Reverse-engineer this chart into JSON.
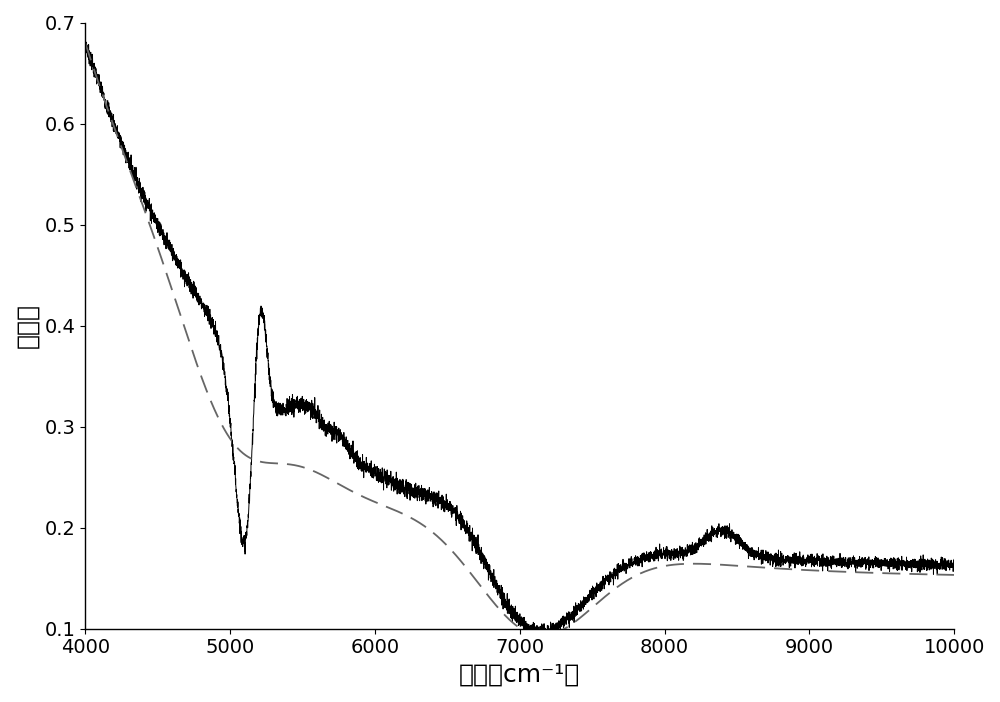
{
  "xlim": [
    4000,
    10000
  ],
  "ylim": [
    0.1,
    0.7
  ],
  "xlabel": "波长（cm⁻¹）",
  "ylabel": "吸光度",
  "xticks": [
    4000,
    5000,
    6000,
    7000,
    8000,
    9000,
    10000
  ],
  "yticks": [
    0.1,
    0.2,
    0.3,
    0.4,
    0.5,
    0.6,
    0.7
  ],
  "line_color": "#000000",
  "baseline_color": "#666666",
  "fig_width": 10.0,
  "fig_height": 7.02,
  "dpi": 100,
  "font_size_label": 18,
  "font_size_tick": 14
}
